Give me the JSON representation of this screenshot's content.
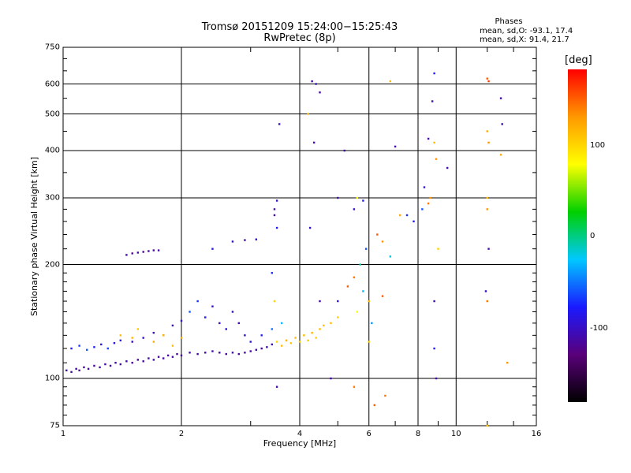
{
  "chart_data": {
    "type": "scatter",
    "title": "Tromsø 20151209 15:24:00−15:25:43",
    "subtitle": "RwPretec (8p)",
    "xlabel": "Frequency [MHz]",
    "ylabel": "Stationary phase Virtual Height [km]",
    "x_scale": "log",
    "y_scale": "log",
    "xlim": [
      1,
      16
    ],
    "ylim": [
      75,
      750
    ],
    "x_ticks": [
      "1",
      "2",
      "4",
      "6",
      "8",
      "10",
      "16"
    ],
    "y_ticks": [
      "75",
      "100",
      "200",
      "300",
      "400",
      "500",
      "600",
      "750"
    ],
    "grid": true,
    "stats": {
      "heading": "Phases",
      "o_line": "mean, sd,O: -93.1, 17.4",
      "x_line": "mean, sd,X:  91.4, 21.7"
    },
    "colorbar": {
      "label": "[deg]",
      "range": [
        -180,
        180
      ],
      "ticks": [
        "100",
        "0",
        "-100"
      ],
      "colors": [
        "#000000",
        "#5a007a",
        "#1a1aff",
        "#00c8ff",
        "#00d000",
        "#ffff00",
        "#ff9900",
        "#ff0000"
      ]
    },
    "points": [
      [
        1.02,
        105,
        -110
      ],
      [
        1.05,
        104,
        -115
      ],
      [
        1.08,
        106,
        -112
      ],
      [
        1.1,
        105,
        -118
      ],
      [
        1.13,
        107,
        -110
      ],
      [
        1.16,
        106,
        -113
      ],
      [
        1.2,
        108,
        -115
      ],
      [
        1.24,
        107,
        -112
      ],
      [
        1.28,
        109,
        -110
      ],
      [
        1.32,
        108,
        -118
      ],
      [
        1.36,
        110,
        -112
      ],
      [
        1.4,
        109,
        -115
      ],
      [
        1.45,
        111,
        -110
      ],
      [
        1.5,
        110,
        -113
      ],
      [
        1.55,
        112,
        -116
      ],
      [
        1.6,
        111,
        -112
      ],
      [
        1.65,
        113,
        -115
      ],
      [
        1.7,
        112,
        -110
      ],
      [
        1.75,
        114,
        -117
      ],
      [
        1.8,
        113,
        -112
      ],
      [
        1.85,
        115,
        -114
      ],
      [
        1.9,
        114,
        -110
      ],
      [
        1.95,
        116,
        -116
      ],
      [
        2.0,
        115,
        -112
      ],
      [
        2.1,
        117,
        -110
      ],
      [
        2.2,
        116,
        -115
      ],
      [
        2.3,
        117,
        -112
      ],
      [
        2.4,
        118,
        -110
      ],
      [
        2.5,
        117,
        -114
      ],
      [
        2.6,
        116,
        -112
      ],
      [
        2.7,
        117,
        -110
      ],
      [
        2.8,
        116,
        -115
      ],
      [
        2.9,
        117,
        -112
      ],
      [
        3.0,
        118,
        -110
      ],
      [
        3.1,
        119,
        -113
      ],
      [
        3.2,
        120,
        -112
      ],
      [
        3.3,
        121,
        -110
      ],
      [
        3.4,
        123,
        -105
      ],
      [
        1.05,
        120,
        -80
      ],
      [
        1.1,
        122,
        -70
      ],
      [
        1.15,
        119,
        -60
      ],
      [
        1.2,
        121,
        -75
      ],
      [
        1.25,
        123,
        -85
      ],
      [
        1.3,
        120,
        -65
      ],
      [
        1.35,
        124,
        -90
      ],
      [
        1.4,
        126,
        -95
      ],
      [
        1.5,
        125,
        -100
      ],
      [
        1.6,
        128,
        -90
      ],
      [
        1.7,
        132,
        -105
      ],
      [
        1.8,
        130,
        -100
      ],
      [
        1.9,
        138,
        -105
      ],
      [
        2.0,
        142,
        -90
      ],
      [
        2.1,
        150,
        -60
      ],
      [
        2.2,
        160,
        -70
      ],
      [
        2.3,
        145,
        -80
      ],
      [
        2.4,
        155,
        -100
      ],
      [
        2.5,
        140,
        -105
      ],
      [
        2.6,
        135,
        -95
      ],
      [
        2.7,
        150,
        -100
      ],
      [
        2.8,
        140,
        -110
      ],
      [
        2.9,
        130,
        -100
      ],
      [
        3.0,
        125,
        -90
      ],
      [
        3.2,
        130,
        -80
      ],
      [
        3.4,
        135,
        -50
      ],
      [
        3.6,
        140,
        -30
      ],
      [
        1.4,
        130,
        110
      ],
      [
        1.5,
        128,
        115
      ],
      [
        1.55,
        135,
        105
      ],
      [
        1.7,
        125,
        120
      ],
      [
        1.8,
        130,
        110
      ],
      [
        1.9,
        122,
        110
      ],
      [
        2.0,
        128,
        115
      ],
      [
        3.5,
        125,
        100
      ],
      [
        3.6,
        122,
        110
      ],
      [
        3.7,
        126,
        115
      ],
      [
        3.8,
        124,
        105
      ],
      [
        3.9,
        128,
        110
      ],
      [
        4.0,
        125,
        100
      ],
      [
        4.1,
        130,
        110
      ],
      [
        4.2,
        126,
        105
      ],
      [
        4.3,
        132,
        115
      ],
      [
        4.4,
        128,
        100
      ],
      [
        4.5,
        135,
        110
      ],
      [
        4.6,
        138,
        105
      ],
      [
        4.8,
        140,
        110
      ],
      [
        5.0,
        145,
        100
      ],
      [
        1.45,
        212,
        -110
      ],
      [
        1.5,
        214,
        -115
      ],
      [
        1.55,
        215,
        -112
      ],
      [
        1.6,
        216,
        -118
      ],
      [
        1.65,
        217,
        -110
      ],
      [
        1.7,
        218,
        -115
      ],
      [
        1.75,
        218,
        -112
      ],
      [
        2.4,
        220,
        -90
      ],
      [
        2.7,
        230,
        -100
      ],
      [
        2.9,
        232,
        -110
      ],
      [
        3.1,
        233,
        -105
      ],
      [
        3.45,
        270,
        -110
      ],
      [
        3.45,
        280,
        -105
      ],
      [
        3.5,
        295,
        -100
      ],
      [
        3.5,
        250,
        -80
      ],
      [
        3.55,
        470,
        -100
      ],
      [
        3.4,
        190,
        -70
      ],
      [
        3.45,
        160,
        100
      ],
      [
        4.3,
        610,
        -110
      ],
      [
        4.4,
        600,
        -100
      ],
      [
        4.5,
        570,
        -110
      ],
      [
        4.35,
        420,
        -110
      ],
      [
        4.2,
        500,
        110
      ],
      [
        4.25,
        250,
        -100
      ],
      [
        5.2,
        400,
        -110
      ],
      [
        5.0,
        300,
        -110
      ],
      [
        5.5,
        280,
        -100
      ],
      [
        5.6,
        300,
        80
      ],
      [
        5.8,
        295,
        -80
      ],
      [
        5.9,
        220,
        -60
      ],
      [
        5.7,
        200,
        -10
      ],
      [
        5.5,
        185,
        140
      ],
      [
        5.8,
        170,
        -30
      ],
      [
        6.0,
        160,
        110
      ],
      [
        5.3,
        175,
        150
      ],
      [
        5.6,
        150,
        80
      ],
      [
        6.1,
        140,
        -40
      ],
      [
        6.3,
        240,
        150
      ],
      [
        6.5,
        230,
        130
      ],
      [
        6.8,
        210,
        -20
      ],
      [
        7.0,
        410,
        -110
      ],
      [
        6.8,
        610,
        110
      ],
      [
        7.2,
        270,
        120
      ],
      [
        7.5,
        270,
        -70
      ],
      [
        7.8,
        260,
        -80
      ],
      [
        8.2,
        280,
        -60
      ],
      [
        8.5,
        290,
        140
      ],
      [
        8.6,
        300,
        130
      ],
      [
        8.8,
        640,
        -80
      ],
      [
        8.7,
        540,
        -110
      ],
      [
        8.8,
        420,
        110
      ],
      [
        8.9,
        380,
        130
      ],
      [
        8.5,
        430,
        -110
      ],
      [
        9.0,
        220,
        100
      ],
      [
        9.5,
        360,
        -110
      ],
      [
        8.3,
        320,
        -90
      ],
      [
        12.0,
        620,
        150
      ],
      [
        12.1,
        610,
        160
      ],
      [
        12.0,
        450,
        120
      ],
      [
        12.1,
        420,
        130
      ],
      [
        12.0,
        300,
        110
      ],
      [
        12.0,
        280,
        130
      ],
      [
        12.1,
        220,
        -110
      ],
      [
        11.9,
        170,
        -90
      ],
      [
        12.0,
        160,
        140
      ],
      [
        13.0,
        550,
        -110
      ],
      [
        13.1,
        470,
        -110
      ],
      [
        13.0,
        390,
        120
      ],
      [
        3.5,
        95,
        -110
      ],
      [
        4.8,
        100,
        -110
      ],
      [
        5.5,
        95,
        140
      ],
      [
        6.2,
        85,
        150
      ],
      [
        6.6,
        90,
        140
      ],
      [
        12.0,
        75,
        110
      ],
      [
        8.9,
        100,
        -110
      ],
      [
        13.5,
        110,
        130
      ],
      [
        8.8,
        120,
        -80
      ],
      [
        6.0,
        125,
        100
      ],
      [
        5.0,
        160,
        -90
      ],
      [
        6.5,
        165,
        150
      ],
      [
        8.8,
        160,
        -110
      ],
      [
        4.5,
        160,
        -110
      ]
    ]
  }
}
